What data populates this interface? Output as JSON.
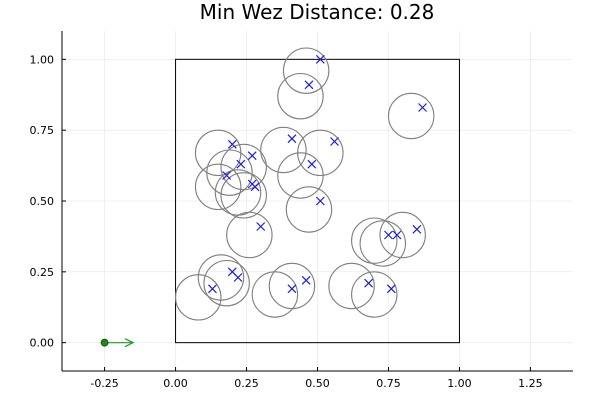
{
  "chart_data": {
    "type": "scatter",
    "title": "Min Wez Distance: 0.28",
    "xlabel": "",
    "ylabel": "",
    "xlim": [
      -0.4,
      1.4
    ],
    "ylim": [
      -0.1,
      1.1
    ],
    "x_ticks": [
      -0.25,
      0.0,
      0.25,
      0.5,
      0.75,
      1.0,
      1.25
    ],
    "x_tick_labels": [
      "-0.25",
      "0.00",
      "0.25",
      "0.50",
      "0.75",
      "1.00",
      "1.25"
    ],
    "y_ticks": [
      0.0,
      0.25,
      0.5,
      0.75,
      1.0
    ],
    "y_tick_labels": [
      "0.00",
      "0.25",
      "0.50",
      "0.75",
      "1.00"
    ],
    "grid": true,
    "boundary_box": {
      "x": [
        0,
        1
      ],
      "y": [
        0,
        1
      ]
    },
    "marker_radius": 0.08,
    "markers": [
      {
        "x": 0.51,
        "y": 1.0,
        "cx": 0.46,
        "cy": 0.96
      },
      {
        "x": 0.47,
        "y": 0.91,
        "cx": 0.44,
        "cy": 0.87
      },
      {
        "x": 0.87,
        "y": 0.83,
        "cx": 0.83,
        "cy": 0.8
      },
      {
        "x": 0.41,
        "y": 0.72,
        "cx": 0.38,
        "cy": 0.68
      },
      {
        "x": 0.56,
        "y": 0.71,
        "cx": 0.51,
        "cy": 0.67
      },
      {
        "x": 0.2,
        "y": 0.7,
        "cx": 0.15,
        "cy": 0.67
      },
      {
        "x": 0.27,
        "y": 0.66,
        "cx": 0.24,
        "cy": 0.62
      },
      {
        "x": 0.23,
        "y": 0.63,
        "cx": 0.19,
        "cy": 0.6
      },
      {
        "x": 0.48,
        "y": 0.63,
        "cx": 0.44,
        "cy": 0.59
      },
      {
        "x": 0.18,
        "y": 0.59,
        "cx": 0.15,
        "cy": 0.55
      },
      {
        "x": 0.27,
        "y": 0.56,
        "cx": 0.22,
        "cy": 0.53
      },
      {
        "x": 0.28,
        "y": 0.55,
        "cx": 0.24,
        "cy": 0.52
      },
      {
        "x": 0.51,
        "y": 0.5,
        "cx": 0.47,
        "cy": 0.47
      },
      {
        "x": 0.3,
        "y": 0.41,
        "cx": 0.26,
        "cy": 0.38
      },
      {
        "x": 0.85,
        "y": 0.4,
        "cx": 0.8,
        "cy": 0.38
      },
      {
        "x": 0.75,
        "y": 0.38,
        "cx": 0.7,
        "cy": 0.36
      },
      {
        "x": 0.78,
        "y": 0.38,
        "cx": 0.73,
        "cy": 0.35
      },
      {
        "x": 0.2,
        "y": 0.25,
        "cx": 0.16,
        "cy": 0.23
      },
      {
        "x": 0.22,
        "y": 0.23,
        "cx": 0.18,
        "cy": 0.21
      },
      {
        "x": 0.46,
        "y": 0.22,
        "cx": 0.41,
        "cy": 0.2
      },
      {
        "x": 0.68,
        "y": 0.21,
        "cx": 0.62,
        "cy": 0.2
      },
      {
        "x": 0.13,
        "y": 0.19,
        "cx": 0.08,
        "cy": 0.16
      },
      {
        "x": 0.41,
        "y": 0.19,
        "cx": 0.35,
        "cy": 0.17
      },
      {
        "x": 0.76,
        "y": 0.19,
        "cx": 0.7,
        "cy": 0.17
      }
    ],
    "agent": {
      "x": -0.25,
      "y": 0.0,
      "heading_dx": 0.1,
      "heading_dy": 0.0
    },
    "colors": {
      "cross": "#1a1ae6",
      "circle": "#808080",
      "agent": "#1a8a1a",
      "box": "#000000"
    }
  }
}
